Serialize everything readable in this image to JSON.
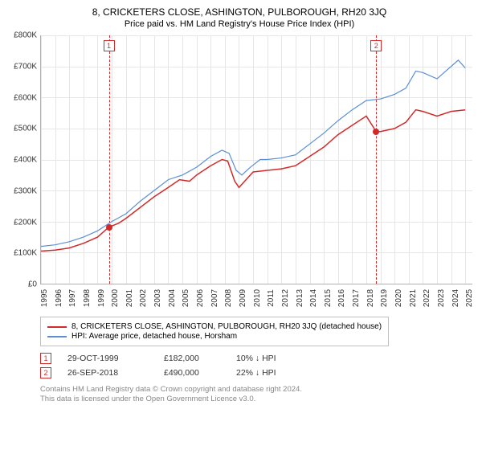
{
  "title": "8, CRICKETERS CLOSE, ASHINGTON, PULBOROUGH, RH20 3JQ",
  "subtitle": "Price paid vs. HM Land Registry's House Price Index (HPI)",
  "chart": {
    "type": "line",
    "xlim": [
      1995,
      2025.5
    ],
    "ylim": [
      0,
      800000
    ],
    "ytick_step": 100000,
    "y_labels": [
      "£0",
      "£100K",
      "£200K",
      "£300K",
      "£400K",
      "£500K",
      "£600K",
      "£700K",
      "£800K"
    ],
    "x_labels": [
      "1995",
      "1996",
      "1997",
      "1998",
      "1999",
      "2000",
      "2001",
      "2002",
      "2003",
      "2004",
      "2005",
      "2006",
      "2007",
      "2008",
      "2009",
      "2010",
      "2011",
      "2012",
      "2013",
      "2014",
      "2015",
      "2016",
      "2017",
      "2018",
      "2019",
      "2020",
      "2021",
      "2022",
      "2023",
      "2024",
      "2025"
    ],
    "grid_color": "#e6e6e6",
    "axis_color": "#b0b0b0",
    "background_color": "#ffffff",
    "series": [
      {
        "name": "price_paid",
        "label": "8, CRICKETERS CLOSE, ASHINGTON, PULBOROUGH, RH20 3JQ (detached house)",
        "color": "#d22a2a",
        "line_width": 1.5,
        "points": [
          [
            1995,
            105000
          ],
          [
            1996,
            108000
          ],
          [
            1997,
            115000
          ],
          [
            1998,
            130000
          ],
          [
            1999,
            150000
          ],
          [
            1999.8,
            182000
          ],
          [
            2000.5,
            195000
          ],
          [
            2001,
            210000
          ],
          [
            2002,
            245000
          ],
          [
            2003,
            280000
          ],
          [
            2004,
            310000
          ],
          [
            2004.8,
            335000
          ],
          [
            2005.5,
            330000
          ],
          [
            2006,
            350000
          ],
          [
            2007,
            380000
          ],
          [
            2007.8,
            400000
          ],
          [
            2008.2,
            395000
          ],
          [
            2008.7,
            330000
          ],
          [
            2009,
            310000
          ],
          [
            2009.5,
            335000
          ],
          [
            2010,
            360000
          ],
          [
            2011,
            365000
          ],
          [
            2012,
            370000
          ],
          [
            2013,
            380000
          ],
          [
            2014,
            410000
          ],
          [
            2015,
            440000
          ],
          [
            2016,
            480000
          ],
          [
            2017,
            510000
          ],
          [
            2018,
            540000
          ],
          [
            2018.7,
            490000
          ],
          [
            2019,
            490000
          ],
          [
            2020,
            500000
          ],
          [
            2020.8,
            520000
          ],
          [
            2021.5,
            560000
          ],
          [
            2022,
            555000
          ],
          [
            2023,
            540000
          ],
          [
            2024,
            555000
          ],
          [
            2025,
            560000
          ]
        ]
      },
      {
        "name": "hpi",
        "label": "HPI: Average price, detached house, Horsham",
        "color": "#5a8fd6",
        "line_width": 1.2,
        "points": [
          [
            1995,
            120000
          ],
          [
            1996,
            125000
          ],
          [
            1997,
            135000
          ],
          [
            1998,
            150000
          ],
          [
            1999,
            170000
          ],
          [
            2000,
            200000
          ],
          [
            2001,
            225000
          ],
          [
            2002,
            265000
          ],
          [
            2003,
            300000
          ],
          [
            2004,
            335000
          ],
          [
            2005,
            350000
          ],
          [
            2006,
            375000
          ],
          [
            2007,
            410000
          ],
          [
            2007.8,
            430000
          ],
          [
            2008.3,
            420000
          ],
          [
            2008.8,
            365000
          ],
          [
            2009.2,
            350000
          ],
          [
            2009.8,
            375000
          ],
          [
            2010.5,
            400000
          ],
          [
            2011,
            400000
          ],
          [
            2012,
            405000
          ],
          [
            2013,
            415000
          ],
          [
            2014,
            450000
          ],
          [
            2015,
            485000
          ],
          [
            2016,
            525000
          ],
          [
            2017,
            560000
          ],
          [
            2018,
            590000
          ],
          [
            2019,
            595000
          ],
          [
            2020,
            610000
          ],
          [
            2020.8,
            630000
          ],
          [
            2021.5,
            685000
          ],
          [
            2022,
            680000
          ],
          [
            2023,
            660000
          ],
          [
            2023.5,
            680000
          ],
          [
            2024,
            700000
          ],
          [
            2024.5,
            720000
          ],
          [
            2025,
            695000
          ]
        ]
      }
    ],
    "markers": [
      {
        "id": "1",
        "x": 1999.8,
        "y": 182000
      },
      {
        "id": "2",
        "x": 2018.7,
        "y": 490000
      }
    ]
  },
  "legend": {
    "items": [
      {
        "color": "#d22a2a",
        "label": "8, CRICKETERS CLOSE, ASHINGTON, PULBOROUGH, RH20 3JQ (detached house)"
      },
      {
        "color": "#5a8fd6",
        "label": "HPI: Average price, detached house, Horsham"
      }
    ]
  },
  "sales": [
    {
      "id": "1",
      "date": "29-OCT-1999",
      "price": "£182,000",
      "pct": "10% ↓ HPI"
    },
    {
      "id": "2",
      "date": "26-SEP-2018",
      "price": "£490,000",
      "pct": "22% ↓ HPI"
    }
  ],
  "footer": {
    "line1": "Contains HM Land Registry data © Crown copyright and database right 2024.",
    "line2": "This data is licensed under the Open Government Licence v3.0."
  }
}
